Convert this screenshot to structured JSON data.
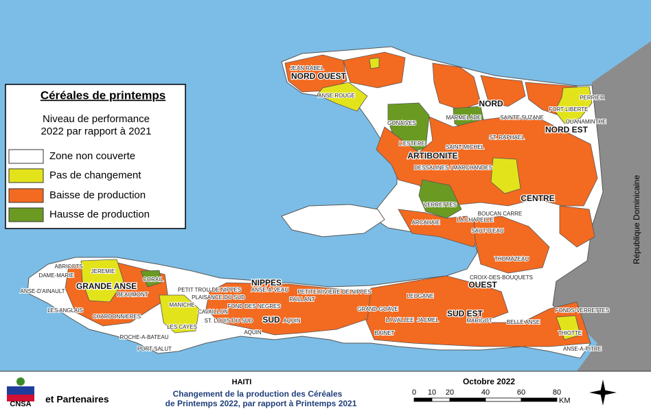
{
  "legend": {
    "title": "Céréales de printemps",
    "subtitle_lines": [
      "Niveau de performance",
      "2022 par rapport à 2021"
    ],
    "items": [
      {
        "label": "Zone non couverte",
        "color": "#ffffff"
      },
      {
        "label": "Pas de changement",
        "color": "#e3e31c"
      },
      {
        "label": "Baisse de production",
        "color": "#f36a21"
      },
      {
        "label": "Hausse de production",
        "color": "#6b9a23"
      }
    ]
  },
  "regions": [
    "NORD OUEST",
    "NORD",
    "NORD EST",
    "ARTIBONITE",
    "CENTRE",
    "OUEST",
    "SUD EST",
    "SUD",
    "NIPPES",
    "GRANDE ANSE"
  ],
  "communes": [
    "JEAN RABEL",
    "ANSE ROUGE",
    "GONAIVES",
    "MARMELADE",
    "SAINTE SUZANE",
    "PERRIER",
    "FORT LIBERTE",
    "OUANAMINTHE",
    "L'ESTERE",
    "SAINT-MICHEL",
    "ST. RAPHAEL",
    "DESSALINES / MARCHANDES",
    "VERRETTES",
    "BOUCAN CARRE",
    "LA CHAPELLE",
    "ARCAHAIE",
    "SAUT-D'EAU",
    "THOMAZEAU",
    "CROIX-DES-BOUQUETS",
    "FONDS-VERRETTES",
    "BELLE ANSE",
    "THIOTTE",
    "ANSE-A-PITRE",
    "MARIGOT",
    "JACMEL",
    "LA VALLEE",
    "BAINET",
    "GRAND-GOAVE",
    "LEOGANE",
    "PETITE RIVIERE DE NIPPES",
    "ANSE-A-VEAU",
    "PAILLANT",
    "FOND DES NEGRES",
    "PETIT TROU DE NIPPES",
    "PLAISANCE DU SUD",
    "AQUIN",
    "ST. LOUIS DU SUD",
    "CAVAILLON",
    "LES CAYES",
    "MANICHE",
    "CORAIL",
    "BEAUMONT",
    "JEREMIE",
    "ABRICOTS",
    "DAME-MARIE",
    "ANSE-D'AINAULT",
    "LES ANGLAIS",
    "CHARDONNIERES",
    "ROCHE-A-BATEAU",
    "PORT-SALUT",
    "AQUIN"
  ],
  "neighbor": "République Dominicaine",
  "footer": {
    "org": "CNSA",
    "partners": "et Partenaires",
    "country": "HAITI",
    "title_lines": [
      "Changement de la production des Céréales",
      "de Printemps 2022, par rapport à Printemps 2021"
    ],
    "date": "Octobre 2022",
    "scale_ticks": [
      0,
      10,
      20,
      40,
      60,
      80
    ],
    "scale_unit": "KM"
  }
}
